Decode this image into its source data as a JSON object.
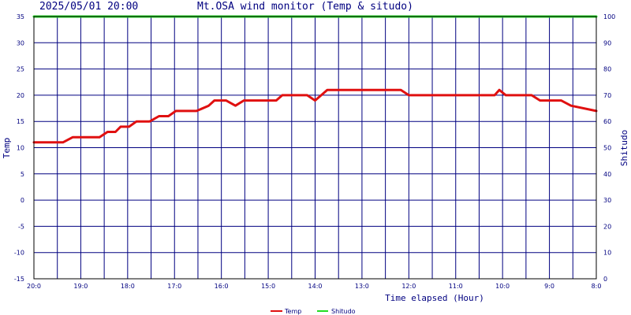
{
  "chart_data": {
    "type": "line",
    "timestamp": "2025/05/01 20:00",
    "title": "Mt.OSA wind monitor (Temp & situdo)",
    "xlabel": "Time elapsed (Hour)",
    "ylabel_left": "Temp",
    "ylabel_right": "Shitudo",
    "ylim_left": [
      -15,
      35
    ],
    "ylim_right": [
      0,
      100
    ],
    "yticks_left": [
      "35",
      "30",
      "25",
      "20",
      "15",
      "10",
      "5",
      "0",
      "-5",
      "-10",
      "-15"
    ],
    "yticks_right": [
      "100",
      "90",
      "80",
      "70",
      "60",
      "50",
      "40",
      "30",
      "20",
      "10",
      "0"
    ],
    "xlim": [
      20,
      8
    ],
    "xticks": [
      {
        "value": 20,
        "label": "20:0"
      },
      {
        "value": 19,
        "label": "19:0"
      },
      {
        "value": 18,
        "label": "18:0"
      },
      {
        "value": 17,
        "label": "17:0"
      },
      {
        "value": 16,
        "label": "16:0"
      },
      {
        "value": 15,
        "label": "15:0"
      },
      {
        "value": 14,
        "label": "14:0"
      },
      {
        "value": 13,
        "label": "13:0"
      },
      {
        "value": 12,
        "label": "12:0"
      },
      {
        "value": 11,
        "label": "11:0"
      },
      {
        "value": 10,
        "label": "10:0"
      },
      {
        "value": 9,
        "label": "9:0"
      },
      {
        "value": 8,
        "label": "8:0"
      }
    ],
    "grid": true,
    "legend_position": "bottom",
    "series": [
      {
        "name": "Temp",
        "axis": "left",
        "color": "#e01010",
        "points": [
          [
            20.0,
            11
          ],
          [
            19.38,
            11
          ],
          [
            19.17,
            12
          ],
          [
            18.6,
            12
          ],
          [
            18.43,
            13
          ],
          [
            18.26,
            13
          ],
          [
            18.15,
            14
          ],
          [
            17.97,
            14
          ],
          [
            17.81,
            15
          ],
          [
            17.53,
            15
          ],
          [
            17.33,
            16
          ],
          [
            17.13,
            16
          ],
          [
            16.97,
            17
          ],
          [
            16.53,
            17
          ],
          [
            16.27,
            18
          ],
          [
            16.15,
            19
          ],
          [
            15.9,
            19
          ],
          [
            15.7,
            18
          ],
          [
            15.52,
            19
          ],
          [
            14.83,
            19
          ],
          [
            14.7,
            20
          ],
          [
            14.17,
            20
          ],
          [
            14.0,
            19
          ],
          [
            13.74,
            21
          ],
          [
            12.17,
            21
          ],
          [
            12.0,
            20
          ],
          [
            10.17,
            20
          ],
          [
            10.07,
            21
          ],
          [
            9.93,
            20
          ],
          [
            9.38,
            20
          ],
          [
            9.2,
            19
          ],
          [
            8.75,
            19
          ],
          [
            8.54,
            18
          ],
          [
            8.0,
            17
          ]
        ]
      },
      {
        "name": "Shitudo",
        "axis": "right",
        "color": "#22dd22",
        "points": [
          [
            20.0,
            100
          ],
          [
            8.0,
            100
          ]
        ]
      }
    ]
  }
}
